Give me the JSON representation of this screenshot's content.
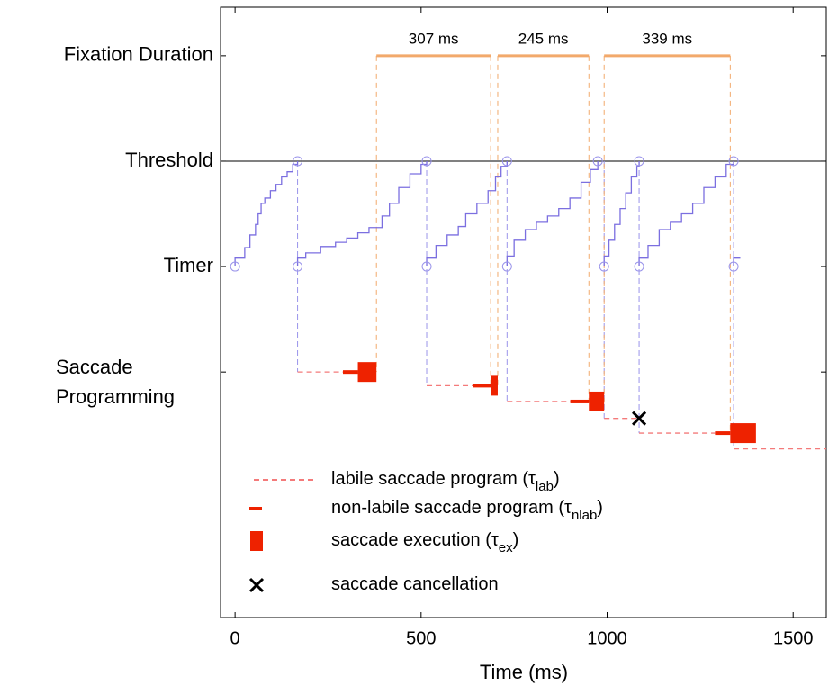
{
  "chart_data": {
    "type": "timeline",
    "xlabel": "Time (ms)",
    "xlim": [
      -39,
      1589
    ],
    "xticks": [
      0,
      500,
      1000,
      1500
    ],
    "ylim": [
      -1.33,
      4.46
    ],
    "yticks": [
      {
        "value": 4,
        "label": "Fixation Duration"
      },
      {
        "value": 3,
        "label": "Threshold"
      },
      {
        "value": 2,
        "label": "Timer"
      },
      {
        "value": 1,
        "label": "Saccade Programming"
      }
    ],
    "reference_line": {
      "value": 3,
      "color": "#000000"
    },
    "fixations": {
      "color": "#f2a96b",
      "items": [
        {
          "start": 380,
          "end": 687,
          "label": "307 ms"
        },
        {
          "start": 706,
          "end": 951,
          "label": "245 ms"
        },
        {
          "start": 992,
          "end": 1331,
          "label": "339 ms"
        }
      ]
    },
    "timer": {
      "color": "#7b6fe0",
      "walks": [
        {
          "x": [
            0,
            0,
            26,
            40,
            55,
            62,
            70,
            80,
            95,
            110,
            125,
            140,
            155,
            168
          ],
          "values": [
            2,
            2.08,
            2.18,
            2.3,
            2.4,
            2.5,
            2.6,
            2.65,
            2.72,
            2.78,
            2.85,
            2.9,
            2.97,
            3
          ],
          "reaches_threshold": true
        },
        {
          "x": [
            168,
            168,
            190,
            230,
            270,
            300,
            330,
            360,
            395,
            415,
            440,
            470,
            500,
            515
          ],
          "values": [
            2,
            2.08,
            2.13,
            2.19,
            2.23,
            2.27,
            2.32,
            2.37,
            2.48,
            2.6,
            2.75,
            2.88,
            2.97,
            3
          ],
          "reaches_threshold": true
        },
        {
          "x": [
            515,
            515,
            540,
            570,
            600,
            620,
            650,
            680,
            700,
            715,
            731
          ],
          "values": [
            2,
            2.08,
            2.2,
            2.3,
            2.38,
            2.5,
            2.6,
            2.72,
            2.85,
            2.95,
            3
          ],
          "reaches_threshold": true
        },
        {
          "x": [
            731,
            731,
            750,
            780,
            810,
            840,
            870,
            900,
            930,
            955,
            975
          ],
          "values": [
            2,
            2.1,
            2.25,
            2.35,
            2.42,
            2.48,
            2.55,
            2.65,
            2.8,
            2.92,
            3
          ],
          "reaches_threshold": true
        },
        {
          "x": [
            992,
            992,
            1005,
            1020,
            1035,
            1050,
            1065,
            1080,
            1086
          ],
          "values": [
            2,
            2.1,
            2.25,
            2.4,
            2.55,
            2.7,
            2.85,
            2.95,
            3
          ],
          "reaches_threshold": true
        },
        {
          "x": [
            1086,
            1086,
            1110,
            1140,
            1170,
            1200,
            1230,
            1260,
            1290,
            1320,
            1340
          ],
          "values": [
            2,
            2.08,
            2.2,
            2.35,
            2.42,
            2.5,
            2.6,
            2.75,
            2.85,
            2.97,
            3
          ],
          "reaches_threshold": true
        },
        {
          "x": [
            1340,
            1340,
            1358
          ],
          "values": [
            2,
            2.08,
            2.08
          ],
          "reaches_threshold": false
        }
      ]
    },
    "programs": {
      "labile_color": "#f47a7a",
      "color": "#ee2200",
      "items": [
        {
          "level": 1.0,
          "labile": [
            168,
            290
          ],
          "nonlabile": [
            290,
            330
          ],
          "execution": [
            330,
            380
          ]
        },
        {
          "level": 0.87,
          "labile": [
            515,
            640
          ],
          "nonlabile": [
            640,
            687
          ],
          "execution": [
            687,
            706
          ]
        },
        {
          "level": 0.72,
          "labile": [
            731,
            901
          ],
          "nonlabile": [
            901,
            951
          ],
          "execution": [
            951,
            992
          ]
        },
        {
          "level": 0.56,
          "labile": [
            992,
            1086
          ],
          "cancel": 1086
        },
        {
          "level": 0.42,
          "labile": [
            1086,
            1290
          ],
          "nonlabile": [
            1290,
            1331
          ],
          "execution": [
            1331,
            1400
          ]
        },
        {
          "level": 0.27,
          "labile": [
            1340,
            1589
          ]
        }
      ]
    },
    "legend": [
      {
        "kind": "labile",
        "text": "labile saccade program (τ",
        "sub": "lab",
        "end": ")"
      },
      {
        "kind": "nonlabile",
        "text": "non-labile saccade program (τ",
        "sub": "nlab",
        "end": ")"
      },
      {
        "kind": "execution",
        "text": "saccade execution (τ",
        "sub": "ex",
        "end": ")"
      },
      {
        "kind": "cancel",
        "text": "saccade cancellation"
      }
    ]
  }
}
